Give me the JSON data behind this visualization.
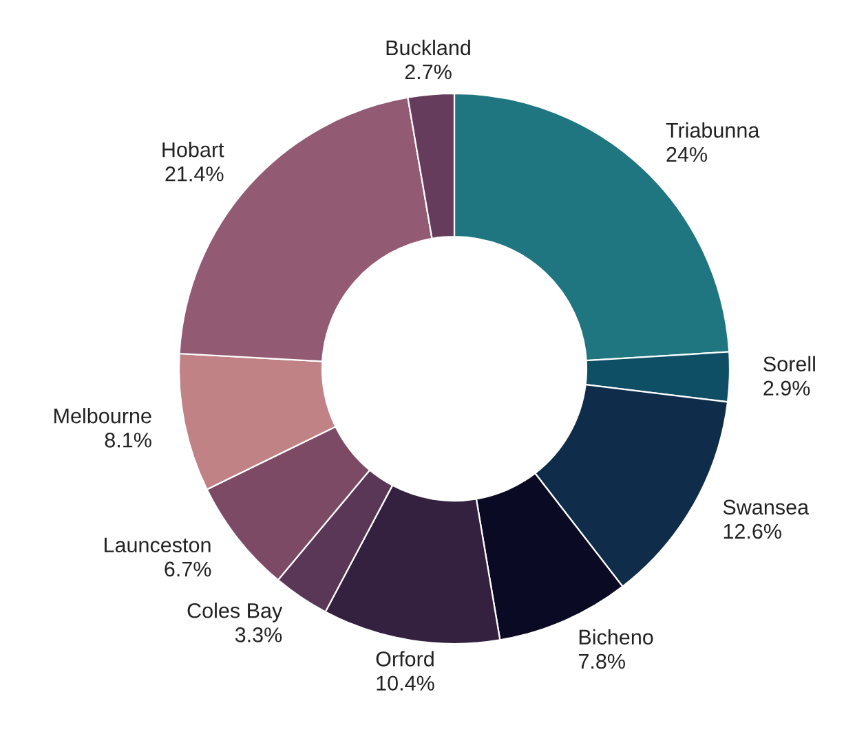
{
  "chart_data": {
    "type": "donut",
    "categories": [
      "Triabunna",
      "Sorell",
      "Swansea",
      "Bicheno",
      "Orford",
      "Coles Bay",
      "Launceston",
      "Melbourne",
      "Hobart",
      "Buckland"
    ],
    "values": [
      24,
      2.9,
      12.6,
      7.8,
      10.4,
      3.3,
      6.7,
      8.1,
      21.4,
      2.7
    ],
    "colors": [
      "#1f7680",
      "#0f4f66",
      "#0f2d4a",
      "#0b0a24",
      "#33213f",
      "#5a3657",
      "#7d4a66",
      "#c08285",
      "#935a73",
      "#653c5c"
    ],
    "value_labels": [
      "24%",
      "2.9%",
      "12.6%",
      "7.8%",
      "10.4%",
      "3.3%",
      "6.7%",
      "8.1%",
      "21.4%",
      "2.7%"
    ],
    "legend": false
  }
}
